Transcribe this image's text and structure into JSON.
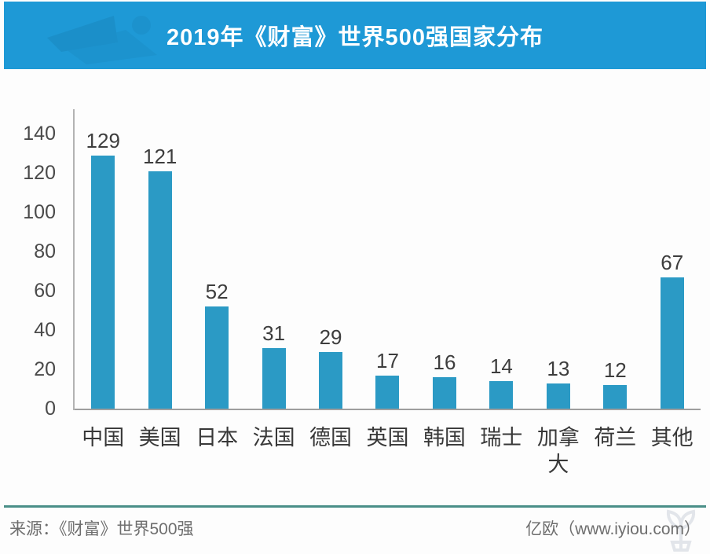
{
  "banner": {
    "title": "2019年《财富》世界500强国家分布",
    "bg_color": "#1E99D6"
  },
  "chart_data": {
    "type": "bar",
    "title": "2019年《财富》世界500强国家分布",
    "categories": [
      "中国",
      "美国",
      "日本",
      "法国",
      "德国",
      "英国",
      "韩国",
      "瑞士",
      "加拿大",
      "荷兰",
      "其他"
    ],
    "values": [
      129,
      121,
      52,
      31,
      29,
      17,
      16,
      14,
      13,
      12,
      67
    ],
    "xlabel": "",
    "ylabel": "",
    "ylim": [
      0,
      140
    ],
    "yticks": [
      0,
      20,
      40,
      60,
      80,
      100,
      120,
      140
    ],
    "bar_color": "#2B9AC5",
    "axis_color": "#9e9e9e",
    "grid": false,
    "legend_position": "none",
    "value_labels_shown": true
  },
  "footer": {
    "source": "来源：《财富》世界500强",
    "brand": "亿欧（www.iyiou.com）",
    "divider_color": "#4a8f88"
  }
}
